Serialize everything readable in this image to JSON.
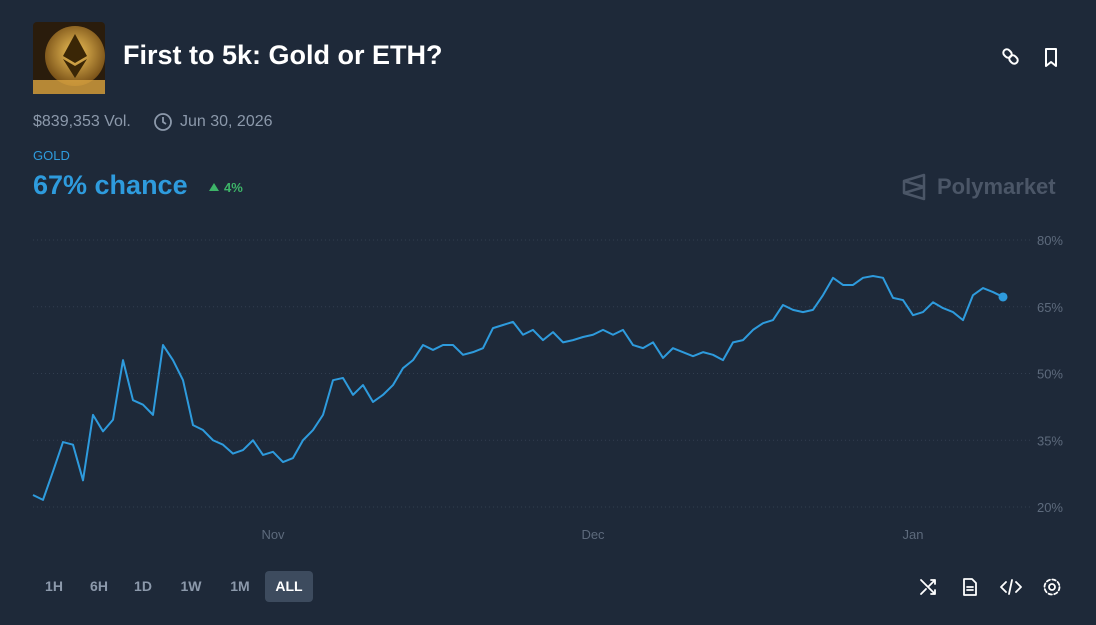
{
  "header": {
    "title": "First to 5k: Gold or ETH?",
    "volume": "$839,353 Vol.",
    "end_date": "Jun 30, 2026",
    "outcome": "GOLD",
    "chance": "67% chance",
    "change": "4%",
    "brand": "Polymarket"
  },
  "time_ranges": [
    "1H",
    "6H",
    "1D",
    "1W",
    "1M",
    "ALL"
  ],
  "active_range": 5,
  "chart_data": {
    "type": "line",
    "color": "#2e9bdd",
    "grid": true,
    "values": [
      22.7,
      21.6,
      28,
      34.6,
      34,
      26,
      40.7,
      37,
      39.6,
      53,
      44,
      43,
      40.7,
      56.4,
      53,
      48.5,
      38.4,
      37.3,
      35,
      34,
      32,
      32.8,
      35,
      31.7,
      32.4,
      30.1,
      31,
      35,
      37.3,
      40.7,
      48.5,
      49,
      45.2,
      47.4,
      43.6,
      45.2,
      47.4,
      51.2,
      53,
      56.4,
      55.3,
      56.4,
      56.4,
      54.2,
      54.8,
      55.7,
      60.2,
      60.9,
      61.6,
      58.7,
      59.8,
      57.5,
      59.3,
      57,
      57.5,
      58.2,
      58.7,
      59.8,
      58.7,
      59.8,
      56.4,
      55.7,
      57,
      53.5,
      55.7,
      54.8,
      53.9,
      54.8,
      54.2,
      53,
      57,
      57.5,
      59.8,
      61.3,
      62,
      65.4,
      64.3,
      63.8,
      64.3,
      67.6,
      71.5,
      69.9,
      69.9,
      71.5,
      71.9,
      71.5,
      67,
      66.5,
      63.1,
      63.8,
      66,
      64.7,
      63.8,
      62,
      67.6,
      69.2,
      68.3,
      67.2
    ],
    "xlim": [
      0,
      97
    ],
    "xticks": [
      {
        "value": 24,
        "label": "Nov"
      },
      {
        "value": 56,
        "label": "Dec"
      },
      {
        "value": 88,
        "label": "Jan"
      }
    ],
    "ylim": [
      20,
      80
    ],
    "yticks": [
      {
        "value": 20,
        "label": "20%"
      },
      {
        "value": 35,
        "label": "35%"
      },
      {
        "value": 50,
        "label": "50%"
      },
      {
        "value": 65,
        "label": "65%"
      },
      {
        "value": 80,
        "label": "80%"
      }
    ]
  }
}
